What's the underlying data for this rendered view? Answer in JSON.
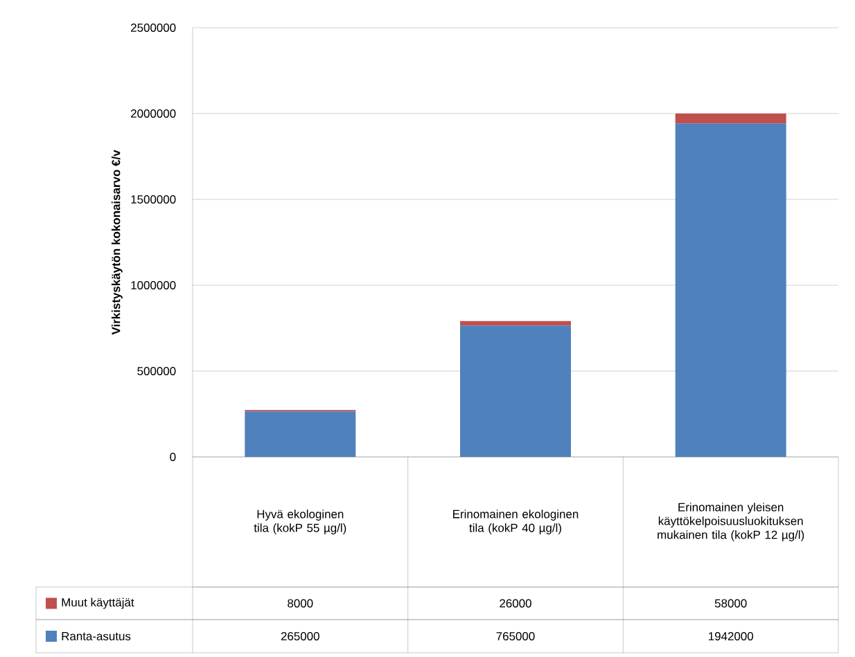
{
  "chart_data": {
    "type": "bar",
    "stacked": true,
    "ylabel": "Virkistyskäytön kokonaisarvo  €/v",
    "categories": [
      "Hyvä ekologinen tila (kokP 55 µg/l)",
      "Erinomainen ekologinen tila (kokP 40 µg/l)",
      "Erinomainen yleisen käyttökelpoisuusluokituksen mukainen tila (kokP 12 µg/l)"
    ],
    "series": [
      {
        "name": "Ranta-asutus",
        "color": "#4f81bd",
        "values": [
          265000,
          765000,
          1942000
        ]
      },
      {
        "name": "Muut käyttäjät",
        "color": "#c0504d",
        "values": [
          8000,
          26000,
          58000
        ]
      }
    ],
    "ylim": [
      0,
      2500000
    ],
    "yticks": [
      0,
      500000,
      1000000,
      1500000,
      2000000,
      2500000
    ],
    "grid": "y",
    "legend": "bottom",
    "data_labels": true
  }
}
